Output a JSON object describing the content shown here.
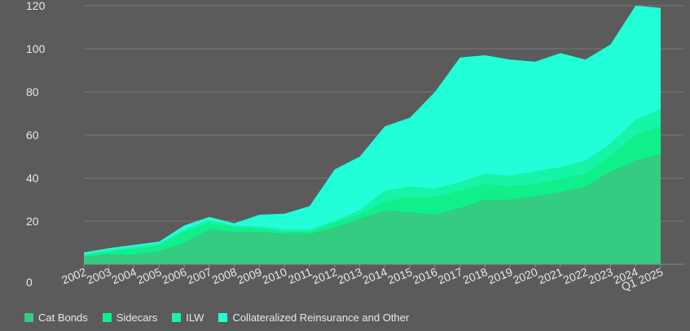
{
  "chart_data": {
    "type": "area",
    "stacked": true,
    "title": "",
    "xlabel": "",
    "ylabel": "",
    "ylim": [
      0,
      120
    ],
    "yticks": [
      0,
      20,
      40,
      60,
      80,
      100,
      120
    ],
    "grid": true,
    "legend_position": "bottom-left",
    "categories": [
      "2002",
      "2003",
      "2004",
      "2005",
      "2006",
      "2007",
      "2008",
      "2009",
      "2010",
      "2011",
      "2012",
      "2013",
      "2014",
      "2015",
      "2016",
      "2017",
      "2018",
      "2019",
      "2020",
      "2021",
      "2022",
      "2023",
      "2024",
      "Q1 2025"
    ],
    "series": [
      {
        "name": "Cat Bonds",
        "color": "#33cc80",
        "values": [
          3.5,
          4.5,
          4.5,
          6,
          10,
          16,
          15,
          15,
          14,
          14,
          17,
          21,
          25,
          24,
          23,
          26,
          30,
          30,
          31.5,
          33.5,
          36,
          43,
          48,
          51
        ]
      },
      {
        "name": "Sidecars",
        "color": "#10f08a",
        "values": [
          0.5,
          1,
          2.5,
          2.5,
          5,
          3,
          2,
          1.5,
          1,
          1,
          2,
          2,
          4,
          7,
          8,
          8,
          7,
          6,
          5.5,
          6,
          6,
          7,
          12,
          13
        ]
      },
      {
        "name": "ILW",
        "color": "#16f5a6",
        "values": [
          0.5,
          1,
          1,
          1,
          1,
          1.5,
          0.8,
          1,
          1,
          1,
          1,
          2,
          5,
          5,
          4,
          4,
          5,
          5,
          6,
          5.5,
          6,
          6,
          7,
          8
        ]
      },
      {
        "name": "Collateralized Reinsurance and Other",
        "color": "#22ffd8",
        "values": [
          1,
          1,
          1,
          1,
          2,
          1.5,
          1.2,
          5.5,
          7.5,
          11,
          24,
          25,
          30,
          32,
          45,
          58,
          55,
          54,
          51,
          53,
          47,
          46,
          53,
          47
        ]
      }
    ]
  }
}
